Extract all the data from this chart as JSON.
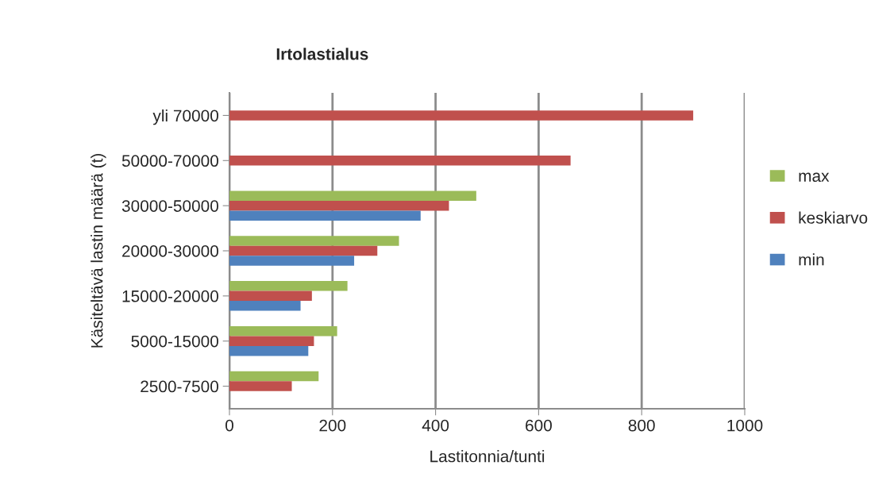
{
  "chart_data": {
    "type": "bar",
    "orientation": "horizontal",
    "title": "Irtolastialus",
    "xlabel": "Lastitonnia/tunti",
    "ylabel": "Käsiteltävä lastin määrä (t)",
    "categories": [
      "yli 70000",
      "50000-70000",
      "30000-50000",
      "20000-30000",
      "15000-20000",
      "5000-15000",
      "2500-7500"
    ],
    "series": [
      {
        "name": "max",
        "color": "#9bbb59",
        "values": [
          null,
          null,
          479,
          329,
          229,
          209,
          173
        ]
      },
      {
        "name": "keskiarvo",
        "color": "#c0504d",
        "values": [
          900,
          662,
          426,
          287,
          160,
          164,
          121
        ]
      },
      {
        "name": "min",
        "color": "#4f81bd",
        "values": [
          null,
          null,
          371,
          242,
          138,
          153,
          null
        ]
      }
    ],
    "xlim": [
      0,
      1000
    ],
    "xticks": [
      0,
      200,
      400,
      600,
      800,
      1000
    ],
    "grid": "x",
    "legend": "right"
  }
}
